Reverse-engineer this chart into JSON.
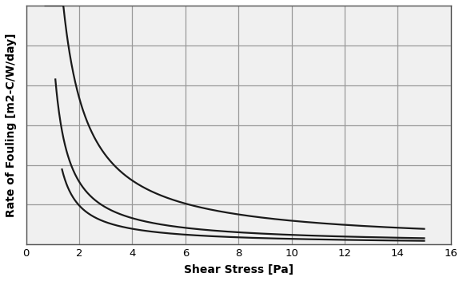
{
  "title": "",
  "xlabel": "Shear Stress [Pa]",
  "ylabel": "Rate of Fouling [m2-C/W/day]",
  "xlim": [
    0,
    16
  ],
  "ylim": [
    0,
    1.0
  ],
  "xticks": [
    0,
    2,
    4,
    6,
    8,
    10,
    12,
    14,
    16
  ],
  "ytick_positions": [
    0.0,
    0.167,
    0.333,
    0.5,
    0.667,
    0.833,
    1.0
  ],
  "grid_color": "#999999",
  "line_color": "#1a1a1a",
  "background_color": "#ffffff",
  "plot_bg_color": "#f0f0f0",
  "curves": [
    {
      "a": 0.95,
      "x0": 0.45,
      "x_start": 0.72,
      "x_end": 15.0
    },
    {
      "a": 0.38,
      "x0": 0.55,
      "x_start": 1.1,
      "x_end": 15.0
    },
    {
      "a": 0.22,
      "x0": 0.65,
      "x_start": 1.35,
      "x_end": 15.0
    }
  ],
  "line_width": 1.6
}
